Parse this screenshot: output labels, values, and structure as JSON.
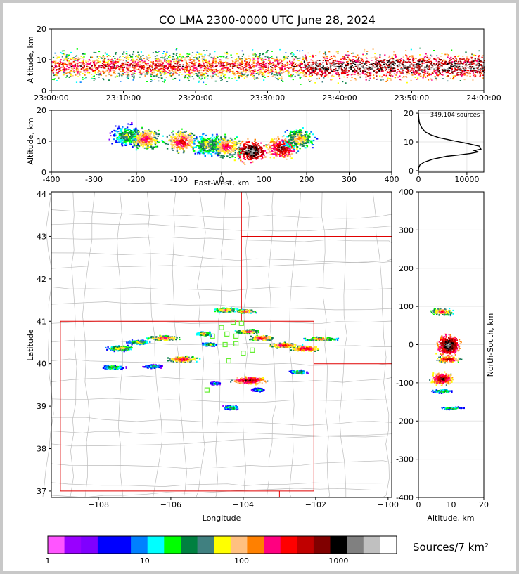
{
  "chart_data": [
    {
      "type": "heatmap",
      "panel": "time-altitude",
      "title": "CO LMA 2300-0000 UTC June 28, 2024",
      "xlabel": "",
      "ylabel": "Altitude, km",
      "xticks": [
        "23:00:00",
        "23:10:00",
        "23:20:00",
        "23:30:00",
        "23:40:00",
        "23:50:00",
        "24:00:00"
      ],
      "xlim_minutes": [
        0,
        60
      ],
      "ylim": [
        0,
        20
      ],
      "yticks": [
        0,
        10,
        20
      ],
      "density_profile": {
        "alt_min": 3,
        "alt_max": 15,
        "peak_alt": 8
      }
    },
    {
      "type": "heatmap",
      "panel": "eastwest-altitude",
      "xlabel": "East-West, km",
      "ylabel": "Altitude, km",
      "xlim": [
        -400,
        400
      ],
      "xticks": [
        -400,
        -300,
        -200,
        -100,
        0,
        100,
        200,
        300,
        400
      ],
      "ylim": [
        0,
        20
      ],
      "yticks": [
        0,
        10,
        20
      ],
      "blobs": [
        {
          "x": -225,
          "y": 12,
          "level": 9
        },
        {
          "x": -180,
          "y": 11,
          "level": 13
        },
        {
          "x": -95,
          "y": 10,
          "level": 14
        },
        {
          "x": -35,
          "y": 9,
          "level": 10
        },
        {
          "x": 10,
          "y": 8.5,
          "level": 13
        },
        {
          "x": 70,
          "y": 7,
          "level": 18
        },
        {
          "x": 140,
          "y": 8,
          "level": 16
        },
        {
          "x": 180,
          "y": 11,
          "level": 11
        }
      ]
    },
    {
      "type": "line",
      "panel": "altitude-histogram",
      "annotation": "349,104 sources",
      "xlim": [
        0,
        13500
      ],
      "xticks": [
        0,
        10000
      ],
      "ylim": [
        -0.5,
        21
      ],
      "yticks": [
        0,
        10,
        20
      ],
      "x": [
        0,
        40,
        300,
        1200,
        3000,
        5800,
        8500,
        10800,
        12300,
        11500,
        12900,
        12600,
        10000,
        7000,
        4200,
        2500,
        1400,
        650,
        250,
        70,
        15
      ],
      "y": [
        0,
        1,
        2,
        3,
        4,
        5,
        5.5,
        6,
        6.5,
        7,
        7.5,
        8.5,
        9.5,
        10.5,
        11.5,
        12.5,
        13.5,
        15,
        16.5,
        18,
        20
      ]
    },
    {
      "type": "heatmap",
      "panel": "plan-view",
      "xlabel": "Longitude",
      "ylabel": "Latitude",
      "xlim": [
        -109.3,
        -99.9
      ],
      "ylim": [
        36.85,
        44.05
      ],
      "xticks": [
        -108,
        -106,
        -104,
        -102,
        -100
      ],
      "yticks": [
        37,
        38,
        39,
        40,
        41,
        42,
        43,
        44
      ],
      "state_borders_lon": [
        -109.05,
        -102.05,
        -104.05
      ],
      "state_borders_lat": [
        37.0,
        41.0,
        43.0,
        40.0
      ],
      "stations": [
        {
          "lon": -104.6,
          "lat": 40.85
        },
        {
          "lon": -104.45,
          "lat": 40.7
        },
        {
          "lon": -104.85,
          "lat": 40.65
        },
        {
          "lon": -104.5,
          "lat": 40.45
        },
        {
          "lon": -104.2,
          "lat": 40.47
        },
        {
          "lon": -104.2,
          "lat": 40.65
        },
        {
          "lon": -104.05,
          "lat": 40.95
        },
        {
          "lon": -103.75,
          "lat": 40.32
        },
        {
          "lon": -104.0,
          "lat": 40.25
        },
        {
          "lon": -104.4,
          "lat": 40.07
        },
        {
          "lon": -105.0,
          "lat": 39.38
        },
        {
          "lon": -104.28,
          "lat": 40.98
        }
      ],
      "blobs": [
        {
          "lon": -107.4,
          "lat": 40.38,
          "w": 0.7,
          "h": 0.1,
          "level": 11
        },
        {
          "lon": -106.9,
          "lat": 40.52,
          "w": 0.6,
          "h": 0.08,
          "level": 10
        },
        {
          "lon": -106.2,
          "lat": 40.62,
          "w": 0.8,
          "h": 0.1,
          "level": 13
        },
        {
          "lon": -105.7,
          "lat": 40.12,
          "w": 0.8,
          "h": 0.12,
          "level": 14
        },
        {
          "lon": -105.1,
          "lat": 40.72,
          "w": 0.4,
          "h": 0.08,
          "level": 11
        },
        {
          "lon": -104.95,
          "lat": 40.47,
          "w": 0.4,
          "h": 0.06,
          "level": 10
        },
        {
          "lon": -104.5,
          "lat": 41.28,
          "w": 0.6,
          "h": 0.08,
          "level": 12
        },
        {
          "lon": -103.95,
          "lat": 41.25,
          "w": 0.5,
          "h": 0.07,
          "level": 13
        },
        {
          "lon": -103.9,
          "lat": 40.77,
          "w": 0.6,
          "h": 0.08,
          "level": 13
        },
        {
          "lon": -103.5,
          "lat": 40.62,
          "w": 0.6,
          "h": 0.1,
          "level": 14
        },
        {
          "lon": -102.9,
          "lat": 40.45,
          "w": 0.8,
          "h": 0.1,
          "level": 14
        },
        {
          "lon": -102.3,
          "lat": 40.37,
          "w": 0.7,
          "h": 0.1,
          "level": 15
        },
        {
          "lon": -101.9,
          "lat": 40.6,
          "w": 0.8,
          "h": 0.07,
          "level": 12
        },
        {
          "lon": -102.5,
          "lat": 39.82,
          "w": 0.5,
          "h": 0.07,
          "level": 9
        },
        {
          "lon": -103.85,
          "lat": 39.62,
          "w": 0.9,
          "h": 0.15,
          "level": 16
        },
        {
          "lon": -107.6,
          "lat": 39.93,
          "w": 0.6,
          "h": 0.08,
          "level": 9
        },
        {
          "lon": -106.5,
          "lat": 39.95,
          "w": 0.5,
          "h": 0.07,
          "level": 8
        },
        {
          "lon": -103.6,
          "lat": 39.4,
          "w": 0.3,
          "h": 0.07,
          "level": 8
        },
        {
          "lon": -104.35,
          "lat": 38.98,
          "w": 0.4,
          "h": 0.08,
          "level": 9
        },
        {
          "lon": -104.8,
          "lat": 39.55,
          "w": 0.3,
          "h": 0.05,
          "level": 7
        }
      ]
    },
    {
      "type": "heatmap",
      "panel": "altitude-northsouth",
      "xlabel": "Altitude, km",
      "ylabel": "North-South, km",
      "xlim": [
        0,
        20
      ],
      "xticks": [
        0,
        10,
        20
      ],
      "ylim": [
        -400,
        400
      ],
      "yticks": [
        -400,
        -300,
        -200,
        -100,
        0,
        100,
        200,
        300,
        400
      ],
      "blobs": [
        {
          "alt": 7,
          "y": 88,
          "h": 14,
          "level": 13
        },
        {
          "alt": 9,
          "y": 0,
          "h": 42,
          "level": 18
        },
        {
          "alt": 9,
          "y": -37,
          "h": 14,
          "level": 15
        },
        {
          "alt": 7,
          "y": -88,
          "h": 24,
          "level": 16
        },
        {
          "alt": 7,
          "y": -120,
          "h": 8,
          "level": 9
        },
        {
          "alt": 10,
          "y": -165,
          "h": 6,
          "level": 9
        }
      ]
    },
    {
      "type": "colorbar",
      "label": "Sources/7 km²",
      "tick_labels": [
        "1",
        "10",
        "100",
        "1000"
      ],
      "tick_values": [
        1,
        10,
        100,
        1000
      ],
      "colors": [
        "#ff55ff",
        "#9900ff",
        "#8000ff",
        "#0000ff",
        "#0000ff",
        "#0080ff",
        "#00ffff",
        "#00ff00",
        "#008040",
        "#408080",
        "#ffff00",
        "#ffc080",
        "#ff8000",
        "#ff0080",
        "#ff0000",
        "#c00000",
        "#800000",
        "#000000",
        "#808080",
        "#c0c0c0",
        "#ffffff"
      ]
    }
  ]
}
